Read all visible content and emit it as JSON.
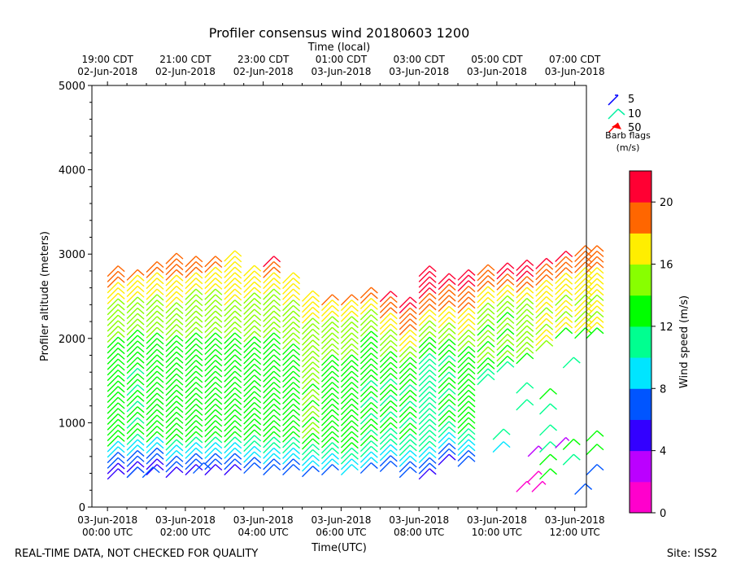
{
  "chart_data": {
    "type": "wind-barb-time-height",
    "title": "Profiler consensus wind 20180603 1200",
    "top_axis_label": "Time (local)",
    "xlabel": "Time(UTC)",
    "ylabel": "Profiler altitude (meters)",
    "ylim": [
      0,
      5000
    ],
    "xlim_hours_utc": [
      -0.4,
      12.3
    ],
    "y_ticks": [
      0,
      1000,
      2000,
      3000,
      4000,
      5000
    ],
    "y_tick_labels": [
      "0",
      "1000",
      "2000",
      "3000",
      "4000",
      "5000"
    ],
    "x_ticks_utc_hours": [
      0,
      2,
      4,
      6,
      8,
      10,
      12
    ],
    "x_tick_labels": [
      [
        "03-Jun-2018",
        "00:00 UTC"
      ],
      [
        "03-Jun-2018",
        "02:00 UTC"
      ],
      [
        "03-Jun-2018",
        "04:00 UTC"
      ],
      [
        "03-Jun-2018",
        "06:00 UTC"
      ],
      [
        "03-Jun-2018",
        "08:00 UTC"
      ],
      [
        "03-Jun-2018",
        "10:00 UTC"
      ],
      [
        "03-Jun-2018",
        "12:00 UTC"
      ]
    ],
    "top_tick_labels": [
      [
        "19:00 CDT",
        "02-Jun-2018"
      ],
      [
        "21:00 CDT",
        "02-Jun-2018"
      ],
      [
        "23:00 CDT",
        "02-Jun-2018"
      ],
      [
        "01:00 CDT",
        "03-Jun-2018"
      ],
      [
        "03:00 CDT",
        "03-Jun-2018"
      ],
      [
        "05:00 CDT",
        "03-Jun-2018"
      ],
      [
        "07:00 CDT",
        "03-Jun-2018"
      ]
    ],
    "legend": {
      "title": "Barb flags",
      "units": "(m/s)",
      "entries": [
        {
          "label": "5",
          "color": "#0000ff"
        },
        {
          "label": "10",
          "color": "#00f0a0"
        },
        {
          "label": "50",
          "color": "#ff0000"
        }
      ]
    },
    "colorbar": {
      "label": "Wind speed (m/s)",
      "range": [
        0,
        22
      ],
      "tick_values": [
        0,
        4,
        8,
        12,
        16,
        20
      ],
      "tick_labels": [
        "0",
        "4",
        "8",
        "12",
        "16",
        "20"
      ],
      "colors": [
        "#ff00cc",
        "#bb00ff",
        "#3300ff",
        "#0055ff",
        "#00e5ff",
        "#00ff90",
        "#00ff00",
        "#88ff00",
        "#ffee00",
        "#ff6600",
        "#ff0033"
      ]
    },
    "profiles": [
      {
        "t": 0.0,
        "top": 2750,
        "bottom": 330,
        "low": [
          9,
          8,
          7,
          6,
          5,
          4
        ],
        "mid": 13,
        "high": 16,
        "cap": 20
      },
      {
        "t": 0.5,
        "top": 2750,
        "bottom": 350,
        "low": [
          9,
          8,
          7,
          6,
          5,
          4
        ],
        "mid": 12,
        "high": 16,
        "cap": 19
      },
      {
        "t": 1.0,
        "top": 2800,
        "bottom": 380,
        "low": [
          9,
          8,
          7,
          6,
          5,
          4
        ],
        "mid": 13,
        "high": 16,
        "cap": 19
      },
      {
        "t": 1.5,
        "top": 2900,
        "bottom": 350,
        "low": [
          10,
          9,
          8,
          7,
          6,
          5
        ],
        "mid": 13,
        "high": 17,
        "cap": 20
      },
      {
        "t": 2.0,
        "top": 2880,
        "bottom": 380,
        "low": [
          10,
          9,
          8,
          7,
          6,
          5
        ],
        "mid": 13,
        "high": 16,
        "cap": 20
      },
      {
        "t": 2.5,
        "top": 2850,
        "bottom": 380,
        "low": [
          10,
          9,
          8,
          7,
          6,
          5
        ],
        "mid": 13,
        "high": 16,
        "cap": 19
      },
      {
        "t": 3.0,
        "top": 2950,
        "bottom": 380,
        "low": [
          10,
          9,
          8,
          7,
          6,
          5
        ],
        "mid": 13,
        "high": 17,
        "cap": 18
      },
      {
        "t": 3.5,
        "top": 2800,
        "bottom": 400,
        "low": [
          11,
          10,
          9,
          8,
          7,
          6
        ],
        "mid": 13,
        "high": 16,
        "cap": 17
      },
      {
        "t": 4.0,
        "top": 2850,
        "bottom": 380,
        "low": [
          11,
          10,
          9,
          8,
          7,
          6
        ],
        "mid": 13,
        "high": 16,
        "cap": 20
      },
      {
        "t": 4.5,
        "top": 2680,
        "bottom": 380,
        "low": [
          11,
          10,
          9,
          8,
          7,
          6
        ],
        "mid": 13,
        "high": 16,
        "cap": 17
      },
      {
        "t": 5.0,
        "top": 2450,
        "bottom": 360,
        "low": [
          12,
          11,
          10,
          9,
          8,
          7
        ],
        "mid": 14,
        "high": 16,
        "cap": 17
      },
      {
        "t": 5.5,
        "top": 2450,
        "bottom": 380,
        "low": [
          12,
          11,
          10,
          9,
          8,
          7
        ],
        "mid": 13,
        "high": 16,
        "cap": 19
      },
      {
        "t": 6.0,
        "top": 2450,
        "bottom": 380,
        "low": [
          13,
          12,
          11,
          10,
          9,
          8
        ],
        "mid": 13,
        "high": 16,
        "cap": 19
      },
      {
        "t": 6.5,
        "top": 2500,
        "bottom": 400,
        "low": [
          12,
          11,
          10,
          9,
          8,
          7
        ],
        "mid": 12,
        "high": 15,
        "cap": 20
      },
      {
        "t": 7.0,
        "top": 2450,
        "bottom": 420,
        "low": [
          11,
          10,
          9,
          8,
          7,
          6
        ],
        "mid": 12,
        "high": 17,
        "cap": 21
      },
      {
        "t": 7.5,
        "top": 2420,
        "bottom": 350,
        "low": [
          11,
          10,
          9,
          8,
          7,
          6
        ],
        "mid": 12,
        "high": 19,
        "cap": 21
      },
      {
        "t": 8.0,
        "top": 2780,
        "bottom": 330,
        "low": [
          10,
          9,
          8,
          7,
          6,
          5
        ],
        "mid": 11,
        "high": 20,
        "cap": 22
      },
      {
        "t": 8.5,
        "top": 2700,
        "bottom": 500,
        "low": [
          10,
          9,
          8,
          7,
          6,
          5
        ],
        "mid": 12,
        "high": 19,
        "cap": 21
      },
      {
        "t": 9.0,
        "top": 2700,
        "bottom": 480,
        "low": [
          11,
          10,
          9,
          8,
          7,
          6
        ],
        "mid": 13,
        "high": 19,
        "cap": 21
      },
      {
        "t": 9.5,
        "top": 2780,
        "bottom": 1450,
        "low": [
          12,
          11,
          10
        ],
        "mid": 14,
        "high": 19,
        "cap": 20
      },
      {
        "t": 10.0,
        "top": 2830,
        "bottom": 1600,
        "low": [
          12,
          11
        ],
        "mid": 14,
        "high": 20,
        "cap": 21
      },
      {
        "t": 10.5,
        "top": 2830,
        "bottom": 1700,
        "low": [
          13
        ],
        "mid": 15,
        "high": 20,
        "cap": 21
      },
      {
        "t": 11.0,
        "top": 2850,
        "bottom": 1850,
        "low": [
          14
        ],
        "mid": 16,
        "high": 19,
        "cap": 21
      },
      {
        "t": 11.5,
        "top": 2950,
        "bottom": 2000,
        "low": [
          13
        ],
        "mid": 16,
        "high": 19,
        "cap": 21
      },
      {
        "t": 12.0,
        "top": 3000,
        "bottom": 2000,
        "low": [
          13
        ],
        "mid": 16,
        "high": 19,
        "cap": 20
      },
      {
        "t": 12.3,
        "top": 3020,
        "bottom": 2000,
        "low": [
          13
        ],
        "mid": 16,
        "high": 19,
        "cap": 20
      }
    ],
    "isolated_barbs": [
      {
        "t": 9.9,
        "z": 800,
        "speed": 10
      },
      {
        "t": 9.9,
        "z": 650,
        "speed": 9
      },
      {
        "t": 10.5,
        "z": 1350,
        "speed": 10
      },
      {
        "t": 10.5,
        "z": 1150,
        "speed": 10
      },
      {
        "t": 11.1,
        "z": 1280,
        "speed": 12
      },
      {
        "t": 11.1,
        "z": 1100,
        "speed": 11
      },
      {
        "t": 11.1,
        "z": 850,
        "speed": 10
      },
      {
        "t": 11.1,
        "z": 650,
        "speed": 11
      },
      {
        "t": 11.1,
        "z": 500,
        "speed": 13
      },
      {
        "t": 11.1,
        "z": 330,
        "speed": 12
      },
      {
        "t": 11.7,
        "z": 1650,
        "speed": 11
      },
      {
        "t": 11.7,
        "z": 680,
        "speed": 12
      },
      {
        "t": 11.7,
        "z": 500,
        "speed": 11
      },
      {
        "t": 12.3,
        "z": 780,
        "speed": 13
      },
      {
        "t": 12.3,
        "z": 620,
        "speed": 12
      },
      {
        "t": 12.3,
        "z": 380,
        "speed": 6
      },
      {
        "t": 12.0,
        "z": 150,
        "speed": 6
      },
      {
        "t": 11.5,
        "z": 700,
        "speed": 2
      },
      {
        "t": 10.8,
        "z": 600,
        "speed": 2
      },
      {
        "t": 10.8,
        "z": 300,
        "speed": 1
      },
      {
        "t": 10.5,
        "z": 180,
        "speed": 1
      },
      {
        "t": 10.9,
        "z": 180,
        "speed": 1
      },
      {
        "t": 2.2,
        "z": 400,
        "speed": 7
      },
      {
        "t": 0.9,
        "z": 350,
        "speed": 6
      },
      {
        "t": 0.5,
        "z": 350,
        "speed": 6
      }
    ]
  },
  "footer": {
    "disclaimer": "REAL-TIME DATA, NOT CHECKED FOR QUALITY",
    "site": "Site: ISS2"
  }
}
